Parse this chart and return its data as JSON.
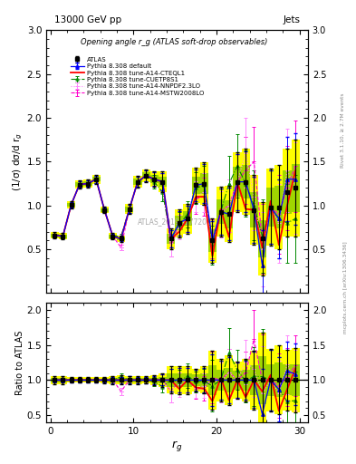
{
  "title_top": "13000 GeV pp",
  "title_right": "Jets",
  "ylabel_main": "(1/σ) dσ/d r_g",
  "ylabel_ratio": "Ratio to ATLAS",
  "xlabel": "r_g",
  "annotation": "Opening angle r_g (ATLAS soft-drop observables)",
  "ref_label": "ATLAS_2019_I1772062",
  "rivet_label": "Rivet 3.1.10, ≥ 2.7M events",
  "arxiv_label": "mcplots.cern.ch [arXiv:1306.3436]",
  "x": [
    0.5,
    1.5,
    2.5,
    3.5,
    4.5,
    5.5,
    6.5,
    7.5,
    8.5,
    9.5,
    10.5,
    11.5,
    12.5,
    13.5,
    14.5,
    15.5,
    16.5,
    17.5,
    18.5,
    19.5,
    20.5,
    21.5,
    22.5,
    23.5,
    24.5,
    25.5,
    26.5,
    27.5,
    28.5,
    29.5
  ],
  "atlas_y": [
    0.66,
    0.65,
    1.01,
    1.24,
    1.25,
    1.3,
    0.95,
    0.65,
    0.62,
    0.96,
    1.27,
    1.34,
    1.3,
    1.27,
    0.62,
    0.8,
    0.85,
    1.23,
    1.25,
    0.6,
    0.93,
    0.9,
    1.27,
    1.27,
    0.95,
    0.62,
    0.98,
    0.98,
    1.15,
    1.2
  ],
  "atlas_yerr": [
    0.04,
    0.04,
    0.04,
    0.05,
    0.05,
    0.05,
    0.04,
    0.04,
    0.04,
    0.06,
    0.07,
    0.07,
    0.09,
    0.12,
    0.12,
    0.16,
    0.17,
    0.2,
    0.24,
    0.25,
    0.28,
    0.32,
    0.34,
    0.38,
    0.4,
    0.42,
    0.44,
    0.48,
    0.5,
    0.55
  ],
  "pythia_default_y": [
    0.66,
    0.65,
    1.01,
    1.24,
    1.25,
    1.3,
    0.95,
    0.65,
    0.62,
    0.96,
    1.27,
    1.34,
    1.3,
    1.27,
    0.62,
    0.8,
    0.85,
    1.23,
    1.25,
    0.6,
    0.93,
    0.9,
    1.27,
    1.27,
    0.95,
    0.32,
    0.98,
    0.85,
    1.3,
    1.3
  ],
  "pythia_default_yerr": [
    0.02,
    0.02,
    0.03,
    0.04,
    0.04,
    0.04,
    0.03,
    0.03,
    0.03,
    0.05,
    0.06,
    0.06,
    0.08,
    0.1,
    0.1,
    0.14,
    0.15,
    0.18,
    0.22,
    0.22,
    0.26,
    0.3,
    0.32,
    0.35,
    0.38,
    0.4,
    0.42,
    0.45,
    0.48,
    0.52
  ],
  "pythia_cteql1_y": [
    0.66,
    0.65,
    1.01,
    1.24,
    1.25,
    1.3,
    0.95,
    0.65,
    0.62,
    0.96,
    1.27,
    1.34,
    1.3,
    1.27,
    0.62,
    0.7,
    0.85,
    1.1,
    1.1,
    0.42,
    0.96,
    0.64,
    1.27,
    0.96,
    0.95,
    0.52,
    1.05,
    0.55,
    1.0,
    1.4
  ],
  "pythia_mstw_y": [
    0.66,
    0.65,
    1.01,
    1.24,
    1.25,
    1.3,
    0.95,
    0.65,
    0.52,
    0.96,
    1.27,
    1.34,
    1.3,
    1.27,
    0.52,
    0.8,
    0.85,
    1.08,
    1.1,
    0.62,
    0.93,
    1.0,
    1.27,
    1.4,
    1.5,
    0.62,
    0.98,
    0.9,
    1.2,
    1.45
  ],
  "pythia_mstw_yerr": [
    0.02,
    0.02,
    0.03,
    0.04,
    0.04,
    0.04,
    0.03,
    0.03,
    0.03,
    0.05,
    0.06,
    0.06,
    0.08,
    0.1,
    0.1,
    0.14,
    0.15,
    0.18,
    0.22,
    0.22,
    0.26,
    0.3,
    0.32,
    0.38,
    0.4,
    0.4,
    0.42,
    0.45,
    0.48,
    0.52
  ],
  "pythia_nnpdf_y": [
    0.66,
    0.65,
    1.01,
    1.24,
    1.25,
    1.3,
    0.95,
    0.65,
    0.52,
    0.96,
    1.27,
    1.34,
    1.3,
    1.27,
    0.52,
    0.75,
    0.85,
    1.1,
    1.15,
    0.6,
    0.9,
    1.0,
    1.27,
    1.6,
    1.1,
    0.5,
    0.98,
    0.8,
    1.4,
    1.2
  ],
  "pythia_nnpdf_yerr": [
    0.02,
    0.02,
    0.03,
    0.04,
    0.04,
    0.04,
    0.03,
    0.03,
    0.03,
    0.05,
    0.06,
    0.06,
    0.08,
    0.1,
    0.1,
    0.14,
    0.15,
    0.18,
    0.22,
    0.22,
    0.26,
    0.3,
    0.32,
    0.4,
    0.38,
    0.42,
    0.42,
    0.45,
    0.48,
    0.52
  ],
  "pythia_cuetp_y": [
    0.66,
    0.65,
    1.01,
    1.24,
    1.25,
    1.3,
    0.95,
    0.65,
    0.65,
    0.96,
    1.27,
    1.34,
    1.27,
    1.15,
    0.62,
    0.78,
    0.9,
    1.2,
    1.23,
    0.55,
    0.93,
    1.25,
    1.45,
    1.25,
    1.0,
    0.65,
    0.98,
    0.85,
    0.8,
    0.85
  ],
  "pythia_cuetp_yerr": [
    0.02,
    0.02,
    0.03,
    0.04,
    0.04,
    0.04,
    0.03,
    0.03,
    0.03,
    0.05,
    0.06,
    0.06,
    0.08,
    0.1,
    0.1,
    0.14,
    0.15,
    0.18,
    0.22,
    0.22,
    0.26,
    0.32,
    0.36,
    0.38,
    0.4,
    0.42,
    0.42,
    0.45,
    0.45,
    0.5
  ],
  "ylim_main": [
    0.0,
    3.0
  ],
  "ylim_ratio": [
    0.4,
    2.1
  ],
  "xlim": [
    -0.5,
    31
  ],
  "bg_color": "#ffffff",
  "atlas_color": "#000000",
  "pythia_default_color": "#0000ff",
  "pythia_cteql1_color": "#ff0000",
  "pythia_mstw_color": "#ff00cc",
  "pythia_nnpdf_color": "#ff88ff",
  "pythia_cuetp_color": "#008800",
  "main_yticks": [
    0.5,
    1.0,
    1.5,
    2.0,
    2.5,
    3.0
  ],
  "ratio_yticks": [
    0.5,
    1.0,
    1.5,
    2.0
  ],
  "xticks": [
    0,
    10,
    20,
    30
  ]
}
